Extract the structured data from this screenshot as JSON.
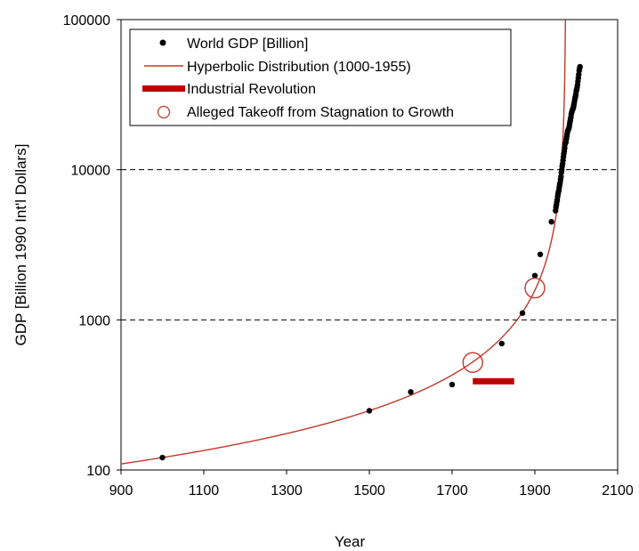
{
  "chart_data": {
    "type": "scatter",
    "xlabel": "Year",
    "ylabel": "GDP [Billion 1990 Int'l Dollars]",
    "xlim": [
      900,
      2100
    ],
    "ylim": [
      100,
      100000
    ],
    "y_scale": "log",
    "x_ticks": [
      "900",
      "1100",
      "1300",
      "1500",
      "1700",
      "1900",
      "2100"
    ],
    "y_ticks": [
      "100",
      "1000",
      "10000",
      "100000"
    ],
    "grid": "dashed horizontal at 1000 and 10000",
    "legend_position": "top-left",
    "legend": [
      "World GDP [Billion]",
      "Hyperbolic Distribution (1000-1955)",
      "Industrial Revolution",
      "Alleged Takeoff from Stagnation to Growth"
    ],
    "colors": {
      "points": "#000000",
      "curve": "#c0392b",
      "industrial": "#c00000",
      "takeoff": "#c0392b"
    },
    "series": [
      {
        "name": "World GDP [Billion]",
        "points": [
          [
            1000,
            121
          ],
          [
            1500,
            248
          ],
          [
            1600,
            331
          ],
          [
            1700,
            371
          ],
          [
            1820,
            695
          ],
          [
            1870,
            1110
          ],
          [
            1900,
            1970
          ],
          [
            1913,
            2730
          ],
          [
            1940,
            4500
          ],
          [
            1950,
            5336
          ],
          [
            1951,
            5615
          ],
          [
            1952,
            5837
          ],
          [
            1953,
            6101
          ],
          [
            1954,
            6288
          ],
          [
            1955,
            6617
          ],
          [
            1956,
            6888
          ],
          [
            1957,
            7133
          ],
          [
            1958,
            7297
          ],
          [
            1959,
            7625
          ],
          [
            1960,
            7942
          ],
          [
            1961,
            8200
          ],
          [
            1962,
            8600
          ],
          [
            1963,
            8980
          ],
          [
            1964,
            9550
          ],
          [
            1965,
            10000
          ],
          [
            1966,
            10550
          ],
          [
            1967,
            10950
          ],
          [
            1968,
            11550
          ],
          [
            1969,
            12200
          ],
          [
            1970,
            12800
          ],
          [
            1971,
            13300
          ],
          [
            1972,
            13950
          ],
          [
            1973,
            14800
          ],
          [
            1974,
            15100
          ],
          [
            1975,
            15250
          ],
          [
            1976,
            15950
          ],
          [
            1977,
            16600
          ],
          [
            1978,
            17300
          ],
          [
            1979,
            17950
          ],
          [
            1980,
            18300
          ],
          [
            1981,
            18600
          ],
          [
            1982,
            18800
          ],
          [
            1983,
            19300
          ],
          [
            1984,
            20200
          ],
          [
            1985,
            20900
          ],
          [
            1986,
            21600
          ],
          [
            1987,
            22400
          ],
          [
            1988,
            23400
          ],
          [
            1989,
            24100
          ],
          [
            1990,
            24700
          ],
          [
            1991,
            25000
          ],
          [
            1992,
            25500
          ],
          [
            1993,
            26000
          ],
          [
            1994,
            26900
          ],
          [
            1995,
            27800
          ],
          [
            1996,
            28900
          ],
          [
            1997,
            30000
          ],
          [
            1998,
            30700
          ],
          [
            1999,
            31800
          ],
          [
            2000,
            33400
          ],
          [
            2001,
            34200
          ],
          [
            2002,
            35200
          ],
          [
            2003,
            36700
          ],
          [
            2004,
            38800
          ],
          [
            2005,
            40800
          ],
          [
            2006,
            43100
          ],
          [
            2007,
            45700
          ],
          [
            2008,
            47300
          ],
          [
            2009,
            48500
          ]
        ]
      },
      {
        "name": "Hyperbolic Distribution (1000-1955)",
        "curve": {
          "form": "y = C / (t0 - x)",
          "C": 118000,
          "t0": 1975
        }
      },
      {
        "name": "Industrial Revolution",
        "range": [
          1750,
          1850
        ],
        "y": 390
      },
      {
        "name": "Alleged Takeoff from Stagnation to Growth",
        "points": [
          [
            1750,
            520
          ],
          [
            1900,
            1630
          ]
        ]
      }
    ]
  }
}
